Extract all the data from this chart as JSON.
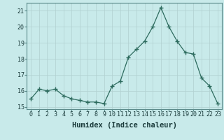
{
  "x": [
    0,
    1,
    2,
    3,
    4,
    5,
    6,
    7,
    8,
    9,
    10,
    11,
    12,
    13,
    14,
    15,
    16,
    17,
    18,
    19,
    20,
    21,
    22,
    23
  ],
  "y": [
    15.5,
    16.1,
    16.0,
    16.1,
    15.7,
    15.5,
    15.4,
    15.3,
    15.3,
    15.2,
    16.3,
    16.6,
    18.1,
    18.6,
    19.1,
    20.0,
    21.2,
    20.0,
    19.1,
    18.4,
    18.3,
    16.8,
    16.3,
    15.2
  ],
  "xlabel": "Humidex (Indice chaleur)",
  "yticks": [
    15,
    16,
    17,
    18,
    19,
    20,
    21
  ],
  "xticks": [
    0,
    1,
    2,
    3,
    4,
    5,
    6,
    7,
    8,
    9,
    10,
    11,
    12,
    13,
    14,
    15,
    16,
    17,
    18,
    19,
    20,
    21,
    22,
    23
  ],
  "line_color": "#2d6b5e",
  "marker": "+",
  "marker_size": 4.0,
  "bg_color": "#c8eaea",
  "grid_color": "#b0d0d0",
  "tick_fontsize": 6.0,
  "xlabel_fontsize": 7.5,
  "xlim": [
    -0.5,
    23.5
  ],
  "ylim": [
    14.85,
    21.5
  ]
}
